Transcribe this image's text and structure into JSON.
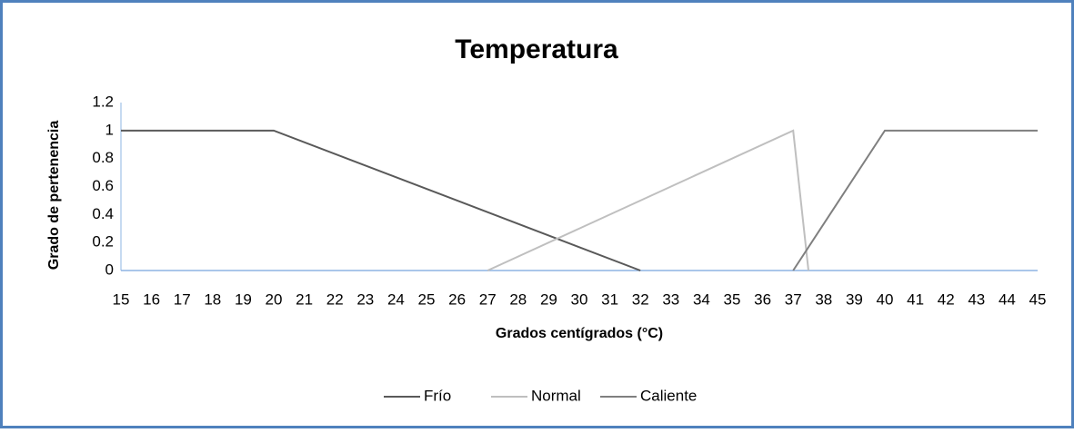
{
  "chart_data": {
    "type": "line",
    "title": "Temperatura",
    "x_label": "Grados centígrados (°C)",
    "y_label": "Grado de pertenencia",
    "xlim": [
      15,
      45
    ],
    "xticks": [
      15,
      16,
      17,
      18,
      19,
      20,
      21,
      22,
      23,
      24,
      25,
      26,
      27,
      28,
      29,
      30,
      31,
      32,
      33,
      34,
      35,
      36,
      37,
      38,
      39,
      40,
      41,
      42,
      43,
      44,
      45
    ],
    "ylim": [
      0,
      1.2
    ],
    "yticks": [
      0,
      0.2,
      0.4,
      0.6,
      0.8,
      1,
      1.2
    ],
    "grid": false,
    "legend": "bottom",
    "series": [
      {
        "name": "Frío",
        "color": "#595959",
        "x": [
          15,
          20,
          32
        ],
        "values": [
          1,
          1,
          0
        ]
      },
      {
        "name": "Normal",
        "color": "#bfbfbf",
        "x": [
          27,
          37,
          37.5
        ],
        "values": [
          0,
          1,
          0
        ]
      },
      {
        "name": "Caliente",
        "color": "#7f7f7f",
        "x": [
          37,
          40,
          45
        ],
        "values": [
          0,
          1,
          1
        ]
      }
    ]
  }
}
